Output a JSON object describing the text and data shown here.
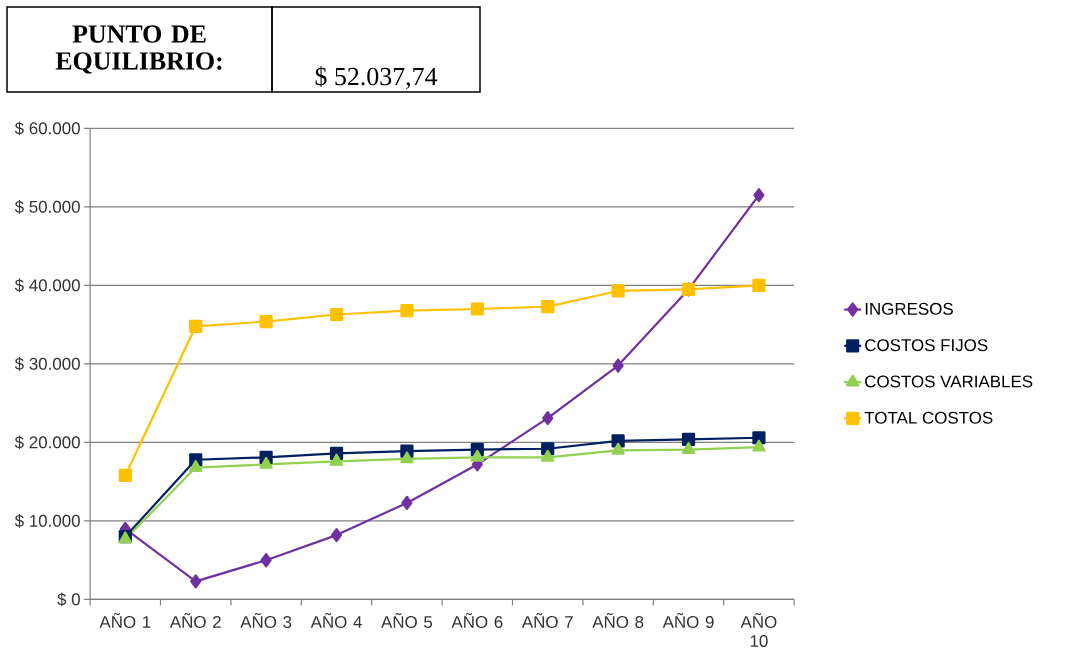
{
  "chart_data": {
    "type": "line",
    "categories": [
      "AÑO 1",
      "AÑO 2",
      "AÑO 3",
      "AÑO 4",
      "AÑO 5",
      "AÑO 6",
      "AÑO 7",
      "AÑO 8",
      "AÑO 9",
      "AÑO 10"
    ],
    "series": [
      {
        "name": "INGRESOS",
        "color": "#7030a0",
        "marker": "diamond",
        "values": [
          9000,
          2300,
          5000,
          8200,
          12300,
          17200,
          23100,
          29800,
          39500,
          51500
        ]
      },
      {
        "name": "COSTOS FIJOS",
        "color": "#002060",
        "marker": "square",
        "values": [
          8000,
          17800,
          18100,
          18600,
          18900,
          19100,
          19200,
          20200,
          20400,
          20600
        ]
      },
      {
        "name": "COSTOS VARIABLES",
        "color": "#92d050",
        "marker": "triangle",
        "values": [
          7700,
          16800,
          17200,
          17600,
          17900,
          18100,
          18100,
          19000,
          19100,
          19400
        ]
      },
      {
        "name": "TOTAL COSTOS",
        "color": "#ffc000",
        "marker": "square",
        "values": [
          15800,
          34800,
          35400,
          36300,
          36800,
          37000,
          37300,
          39300,
          39500,
          40000
        ]
      }
    ],
    "ylim": [
      0,
      60000
    ],
    "yticks": [
      {
        "value": 0,
        "label": "$ 0"
      },
      {
        "value": 10000,
        "label": "$ 10.000"
      },
      {
        "value": 20000,
        "label": "$ 20.000"
      },
      {
        "value": 30000,
        "label": "$ 30.000"
      },
      {
        "value": 40000,
        "label": "$ 40.000"
      },
      {
        "value": 50000,
        "label": "$ 50.000"
      },
      {
        "value": 60000,
        "label": "$ 60.000"
      }
    ],
    "grid": "y",
    "legend": "right",
    "line_style": "solid",
    "annotations": [
      "PUNTO DE EQUILIBRIO:",
      "$ 52.037,74"
    ]
  }
}
